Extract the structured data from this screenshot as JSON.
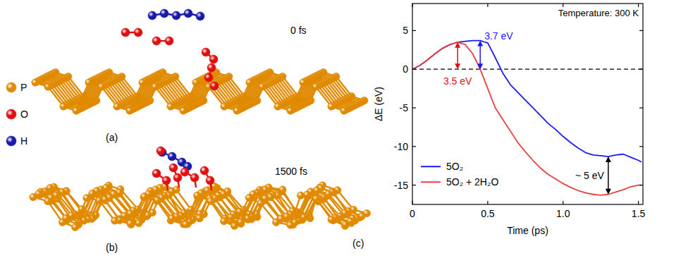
{
  "structures": {
    "panels": [
      {
        "label": "(a)",
        "time": "0 fs"
      },
      {
        "label": "(b)",
        "time": "1500 fs"
      }
    ],
    "elements": [
      {
        "symbol": "P",
        "color": "#e08a00"
      },
      {
        "symbol": "O",
        "color": "#e01010"
      },
      {
        "symbol": "H",
        "color": "#1a1aa8"
      }
    ]
  },
  "chart_data": {
    "type": "line",
    "panel_label": "(c)",
    "x_label": "Time (ps)",
    "y_label": "ΔE (eV)",
    "corner_text": "Temperature: 300 K",
    "x": [
      0,
      0.05,
      0.1,
      0.15,
      0.2,
      0.25,
      0.3,
      0.35,
      0.4,
      0.45,
      0.5,
      0.55,
      0.6,
      0.65,
      0.7,
      0.75,
      0.8,
      0.85,
      0.9,
      0.95,
      1.0,
      1.05,
      1.1,
      1.15,
      1.2,
      1.25,
      1.3,
      1.35,
      1.4,
      1.45,
      1.5,
      1.52
    ],
    "series": [
      {
        "name": "5O₂",
        "color": "#1a1aff",
        "values": [
          0,
          0.5,
          1.2,
          2.0,
          2.7,
          3.2,
          3.5,
          3.6,
          3.7,
          3.7,
          3.4,
          1.5,
          -0.5,
          -2,
          -3,
          -4,
          -5,
          -6,
          -7,
          -7.8,
          -8.7,
          -9.5,
          -10.2,
          -10.8,
          -11.1,
          -11.2,
          -11.3,
          -11.1,
          -11.0,
          -11.4,
          -11.8,
          -12.0
        ]
      },
      {
        "name": "5O₂ + 2H₂O",
        "color": "#e84040",
        "values": [
          0,
          0.5,
          1.2,
          2.0,
          2.7,
          3.2,
          3.5,
          3.2,
          2.0,
          0,
          -2.5,
          -5,
          -6.5,
          -8,
          -9.5,
          -10.7,
          -11.8,
          -12.8,
          -13.6,
          -14.2,
          -14.8,
          -15.3,
          -15.7,
          -16.0,
          -16.2,
          -16.3,
          -16.2,
          -15.9,
          -15.6,
          -15.2,
          -15.0,
          -15.0
        ]
      }
    ],
    "xlim": [
      0,
      1.53
    ],
    "ylim": [
      -17.5,
      8.5
    ],
    "xticks": [
      0,
      0.5,
      {
        "value": 1,
        "label": "1.0"
      },
      1.5
    ],
    "yticks": [
      -15,
      -10,
      -5,
      0,
      5
    ],
    "legend": "lower-left",
    "reference_line": {
      "y": 0,
      "line_style": "dashed"
    },
    "annotations": [
      {
        "text": "3.7 eV",
        "x": 0.45,
        "y_start": 0,
        "y_end": 3.7,
        "color": "#1a1aff"
      },
      {
        "text": "3.5 eV",
        "x": 0.3,
        "y_start": 0,
        "y_end": 3.5,
        "color": "#e01010"
      },
      {
        "text": "~ 5 eV",
        "x": 1.3,
        "y_start": -11.3,
        "y_end": -16.2,
        "color": "#000000"
      }
    ]
  }
}
